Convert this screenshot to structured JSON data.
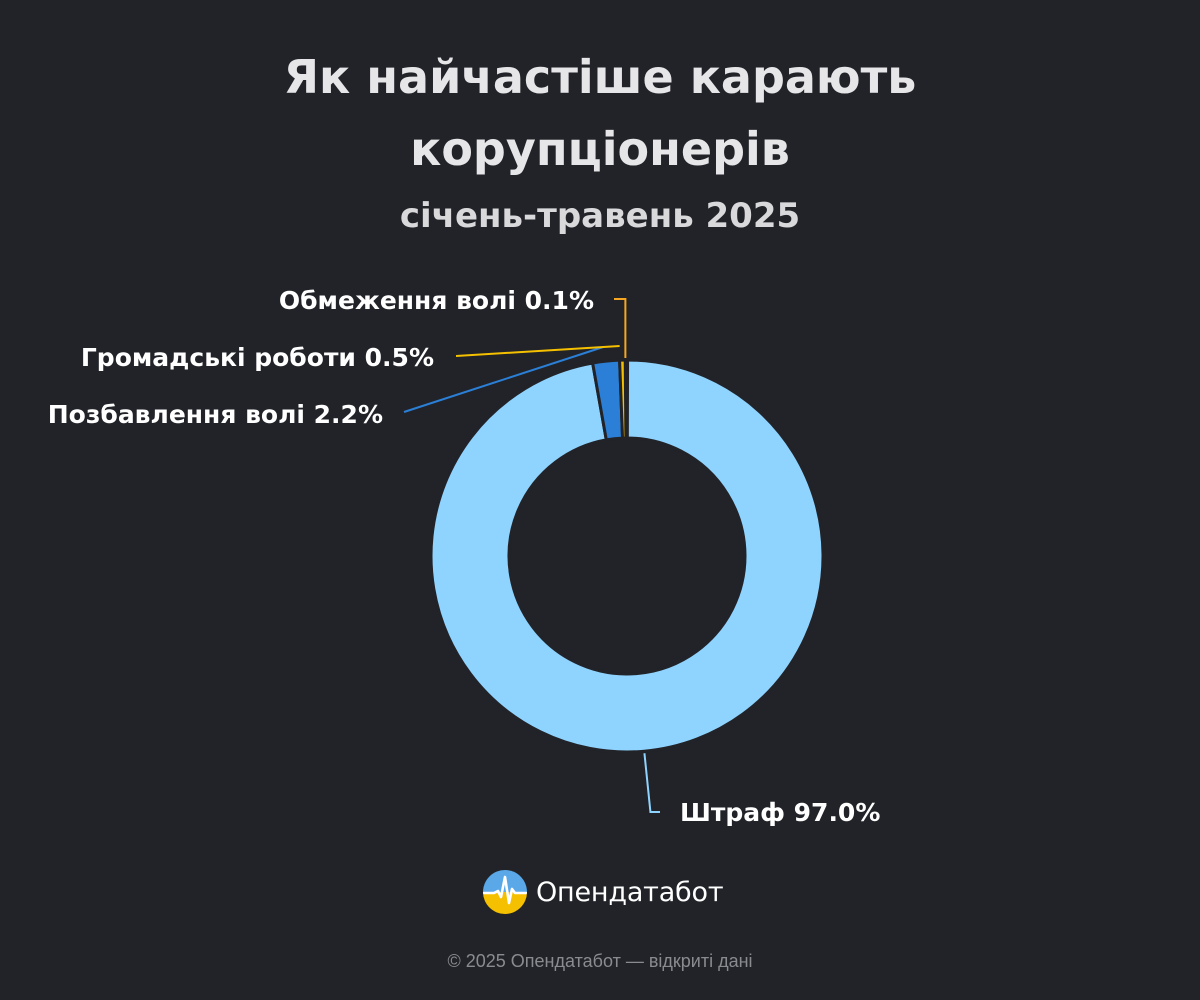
{
  "header": {
    "title_line1": "Як найчастіше карають",
    "title_line2": "корупціонерів",
    "subtitle": "січень-травень 2025"
  },
  "chart_data": {
    "type": "pie",
    "donut": true,
    "slices": [
      {
        "label": "Штраф",
        "value": 97.0,
        "display": "97.0%",
        "color": "#8fd3ff"
      },
      {
        "label": "Позбавлення волі",
        "value": 2.2,
        "display": "2.2%",
        "color": "#2b7fd6"
      },
      {
        "label": "Громадські роботи",
        "value": 0.5,
        "display": "0.5%",
        "color": "#f5c000"
      },
      {
        "label": "Обмеження волі",
        "value": 0.1,
        "display": "0.1%",
        "color": "#f5a623"
      }
    ]
  },
  "brand": {
    "name": "Опендатабот",
    "logo_icon": "opendatabot-logo-icon",
    "logo_colors": {
      "top": "#5aa8e8",
      "bottom": "#f5c000",
      "wave": "#ffffff"
    }
  },
  "footer": {
    "text": "© 2025 Опендатабот — відкриті дані"
  }
}
